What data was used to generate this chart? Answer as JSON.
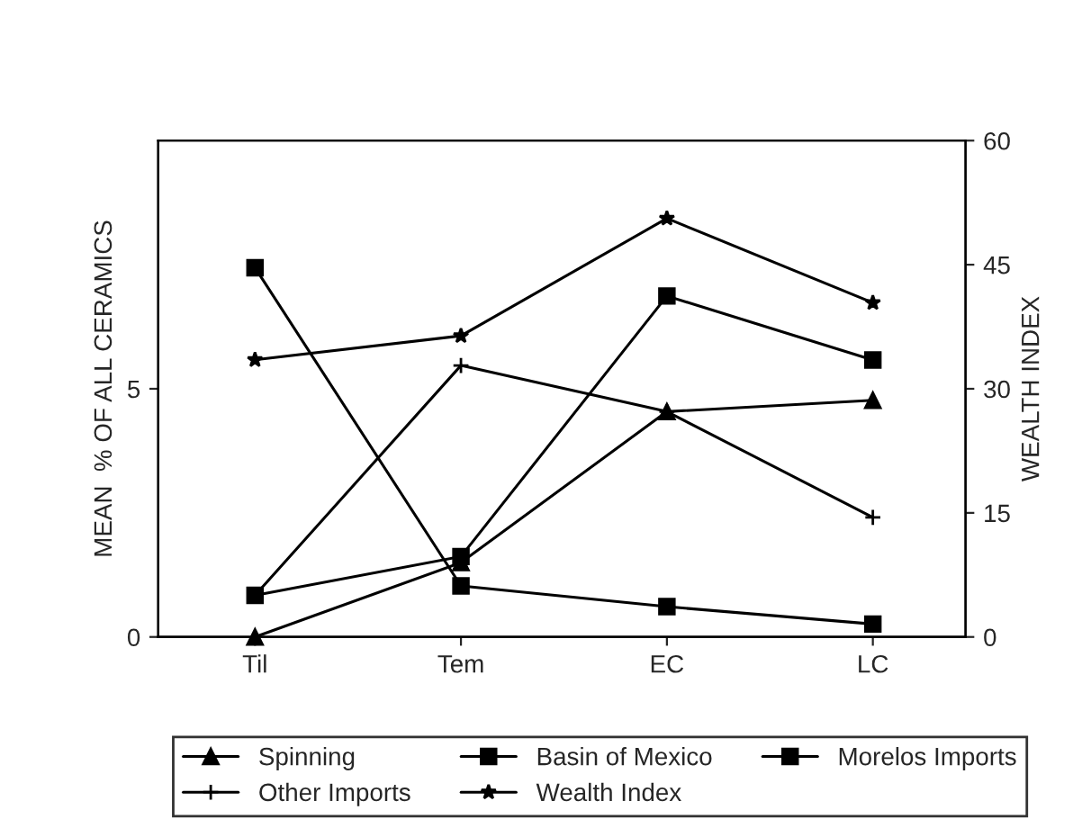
{
  "chart_data": {
    "type": "line",
    "xlabel": null,
    "ylabel": "MEAN  % OF ALL CERAMICS",
    "y2label": "WEALTH INDEX",
    "categories": [
      "Til",
      "Tem",
      "EC",
      "LC"
    ],
    "ylim": [
      0,
      10
    ],
    "yticks": [
      0,
      5
    ],
    "y2lim": [
      0,
      60
    ],
    "y2ticks": [
      0,
      15,
      30,
      45,
      60
    ],
    "grid": false,
    "legend": "bottom",
    "series": [
      {
        "name": "Spinning",
        "color": "#000000",
        "marker": "triangle",
        "values": [
          0,
          1.5,
          4.54,
          4.77
        ]
      },
      {
        "name": "Basin of Mexico",
        "color": "#000000",
        "marker": "square",
        "values": [
          0.84,
          1.62,
          6.87,
          5.58
        ]
      },
      {
        "name": "Morelos Imports",
        "color": "#000000",
        "marker": "square",
        "values": [
          7.44,
          1.03,
          0.61,
          0.26
        ]
      },
      {
        "name": "Other Imports",
        "color": "#000000",
        "marker": "cross",
        "values": [
          0.84,
          5.47,
          4.54,
          2.41
        ]
      },
      {
        "name": "Wealth Index",
        "color": "#000000",
        "marker": "star",
        "axis": "y2",
        "values": [
          33.5,
          36.4,
          50.6,
          40.4
        ]
      }
    ]
  }
}
